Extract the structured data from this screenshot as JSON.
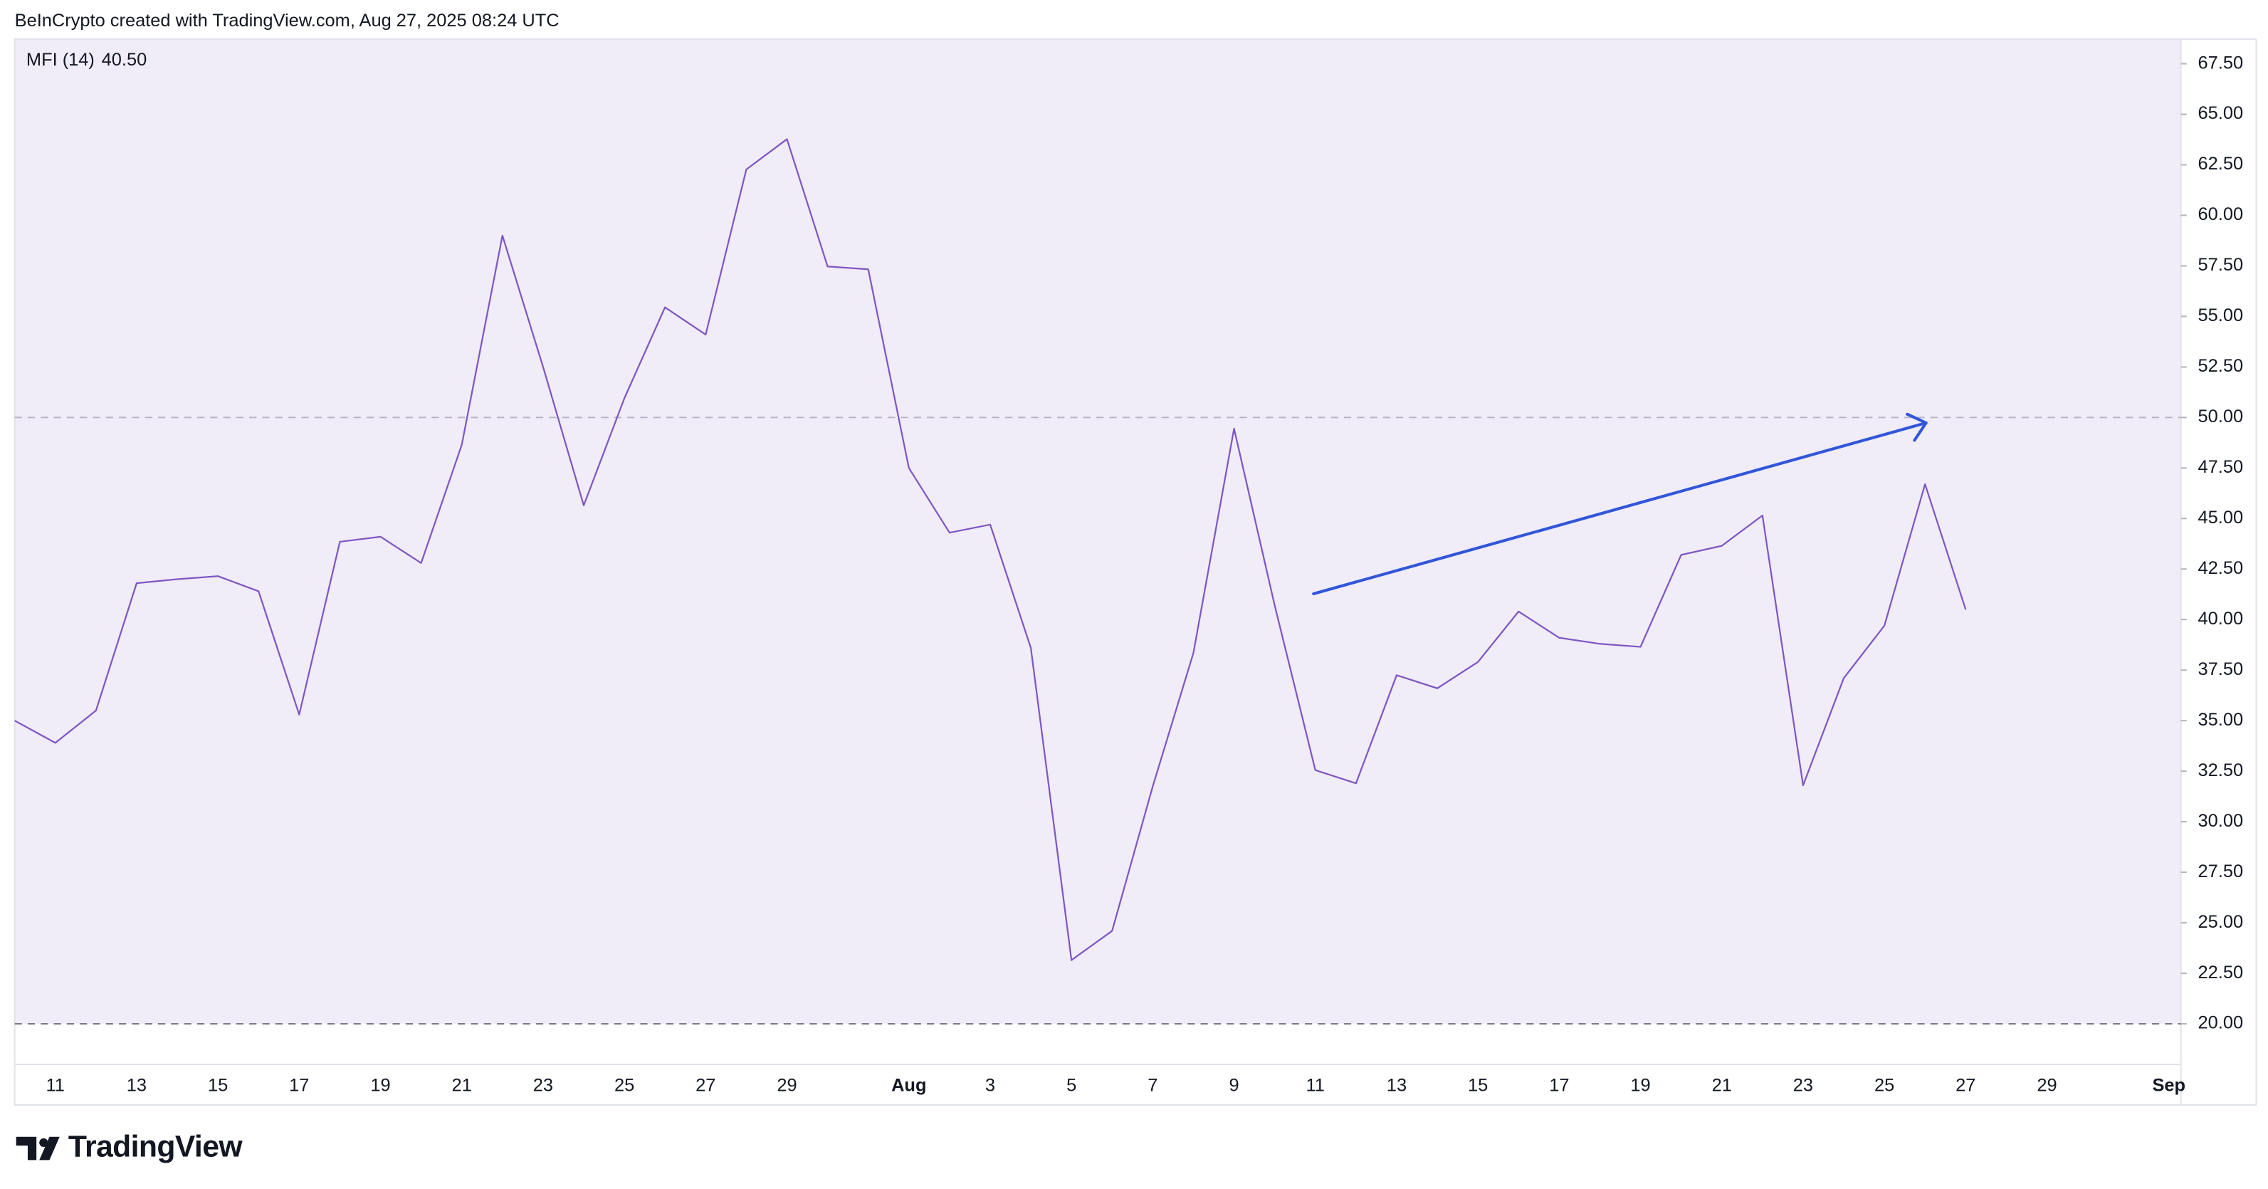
{
  "header": {
    "credit": "BeInCrypto created with TradingView.com, Aug 27, 2025 08:24 UTC"
  },
  "footer": {
    "brand": "TradingView"
  },
  "chart_data": {
    "type": "line",
    "background": "#f0ecf8",
    "categories": [
      null,
      "11",
      null,
      "13",
      null,
      "15",
      null,
      "17",
      null,
      "19",
      null,
      "21",
      null,
      "23",
      null,
      "25",
      null,
      "27",
      null,
      "29",
      null,
      null,
      "Aug",
      null,
      "3",
      null,
      "5",
      null,
      "7",
      null,
      "9",
      null,
      "11",
      null,
      "13",
      null,
      "15",
      null,
      "17",
      null,
      "19",
      null,
      "21",
      null,
      "23",
      null,
      "25",
      null,
      "27",
      null,
      "29",
      null,
      null,
      "Sep"
    ],
    "series": [
      {
        "name": "MFI (14)",
        "color": "#7e57c2",
        "values": [
          35.0,
          33.9,
          35.5,
          41.8,
          42.0,
          42.15,
          41.4,
          35.3,
          43.85,
          44.1,
          42.8,
          48.65,
          59.0,
          52.5,
          45.65,
          50.95,
          55.45,
          54.1,
          62.27,
          63.77,
          57.47,
          57.33,
          47.5,
          44.3,
          44.7,
          38.6,
          23.15,
          24.6,
          31.75,
          38.35,
          49.45,
          40.7,
          32.55,
          31.9,
          37.25,
          36.6,
          37.9,
          40.4,
          39.1,
          38.8,
          38.65,
          43.2,
          43.65,
          45.15,
          31.8,
          37.1,
          39.7,
          46.7,
          40.5,
          null,
          null,
          null,
          null,
          null
        ],
        "legend_value": {
          "value": 40.5,
          "label": "40.50"
        }
      }
    ],
    "ylim": [
      17.99,
      68.72
    ],
    "yticks": [
      {
        "value": 20,
        "label": "20.00"
      },
      {
        "value": 22.5,
        "label": "22.50"
      },
      {
        "value": 25,
        "label": "25.00"
      },
      {
        "value": 27.5,
        "label": "27.50"
      },
      {
        "value": 30,
        "label": "30.00"
      },
      {
        "value": 32.5,
        "label": "32.50"
      },
      {
        "value": 35,
        "label": "35.00"
      },
      {
        "value": 37.5,
        "label": "37.50"
      },
      {
        "value": 40,
        "label": "40.00"
      },
      {
        "value": 42.5,
        "label": "42.50"
      },
      {
        "value": 45,
        "label": "45.00"
      },
      {
        "value": 47.5,
        "label": "47.50"
      },
      {
        "value": 50,
        "label": "50.00"
      },
      {
        "value": 52.5,
        "label": "52.50"
      },
      {
        "value": 55,
        "label": "55.00"
      },
      {
        "value": 57.5,
        "label": "57.50"
      },
      {
        "value": 60,
        "label": "60.00"
      },
      {
        "value": 62.5,
        "label": "62.50"
      },
      {
        "value": 65,
        "label": "65.00"
      },
      {
        "value": 67.5,
        "label": "67.50"
      }
    ],
    "levels": [
      20,
      50
    ],
    "level_colors": [
      "#787b86",
      "#b8b4c4"
    ],
    "arrow_color": "#3056d9"
  }
}
